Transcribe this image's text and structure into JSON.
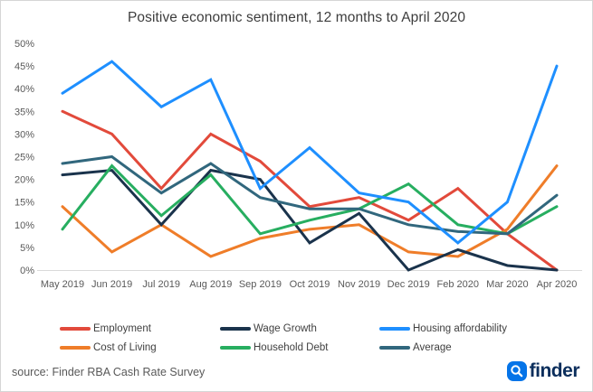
{
  "title": "Positive economic sentiment, 12 months to April 2020",
  "source": {
    "text": "source: Finder RBA Cash Rate Survey"
  },
  "logo": {
    "text": "finder",
    "icon_color": "#0574e8",
    "text_color": "#0b2e5c"
  },
  "chart_data": {
    "type": "line",
    "title": "Positive economic sentiment, 12 months to April 2020",
    "categories": [
      "May 2019",
      "Jun 2019",
      "Jul 2019",
      "Aug 2019",
      "Sep 2019",
      "Oct 2019",
      "Nov 2019",
      "Dec 2019",
      "Feb 2020",
      "Mar 2020",
      "Apr 2020"
    ],
    "unit": "%",
    "ylim": [
      0,
      50
    ],
    "y_tick_step": 5,
    "y_tick_labels": [
      "0%",
      "5%",
      "10%",
      "15%",
      "20%",
      "25%",
      "30%",
      "35%",
      "40%",
      "45%",
      "50%"
    ],
    "grid": false,
    "legend_position": "bottom",
    "series": [
      {
        "name": "Employment",
        "color": "#e24a3b",
        "values": [
          35,
          30,
          18,
          30,
          24,
          14,
          16,
          11,
          18,
          8,
          0
        ]
      },
      {
        "name": "Cost of Living",
        "color": "#ef7d29",
        "values": [
          14,
          4,
          10,
          3,
          7,
          9,
          10,
          4,
          3,
          9,
          23
        ]
      },
      {
        "name": "Wage Growth",
        "color": "#1a334c",
        "values": [
          21,
          22,
          10,
          22,
          20,
          6,
          12.5,
          0,
          4.5,
          1,
          0
        ]
      },
      {
        "name": "Household Debt",
        "color": "#27ae60",
        "values": [
          9,
          23,
          12,
          21,
          8,
          11,
          13.5,
          19,
          10,
          8,
          14
        ]
      },
      {
        "name": "Average",
        "color": "#31677d",
        "values": [
          23.5,
          25,
          17,
          23.5,
          16,
          13.5,
          13.5,
          10,
          8.5,
          8,
          16.5
        ]
      },
      {
        "name": "Housing affordability",
        "color": "#1e8fff",
        "values": [
          39,
          46,
          36,
          42,
          18,
          27,
          17,
          15,
          6,
          15,
          45
        ]
      }
    ],
    "legend_rows": [
      [
        "Employment",
        "Wage Growth",
        "Housing affordability"
      ],
      [
        "Cost of Living",
        "Household Debt",
        "Average"
      ]
    ]
  }
}
